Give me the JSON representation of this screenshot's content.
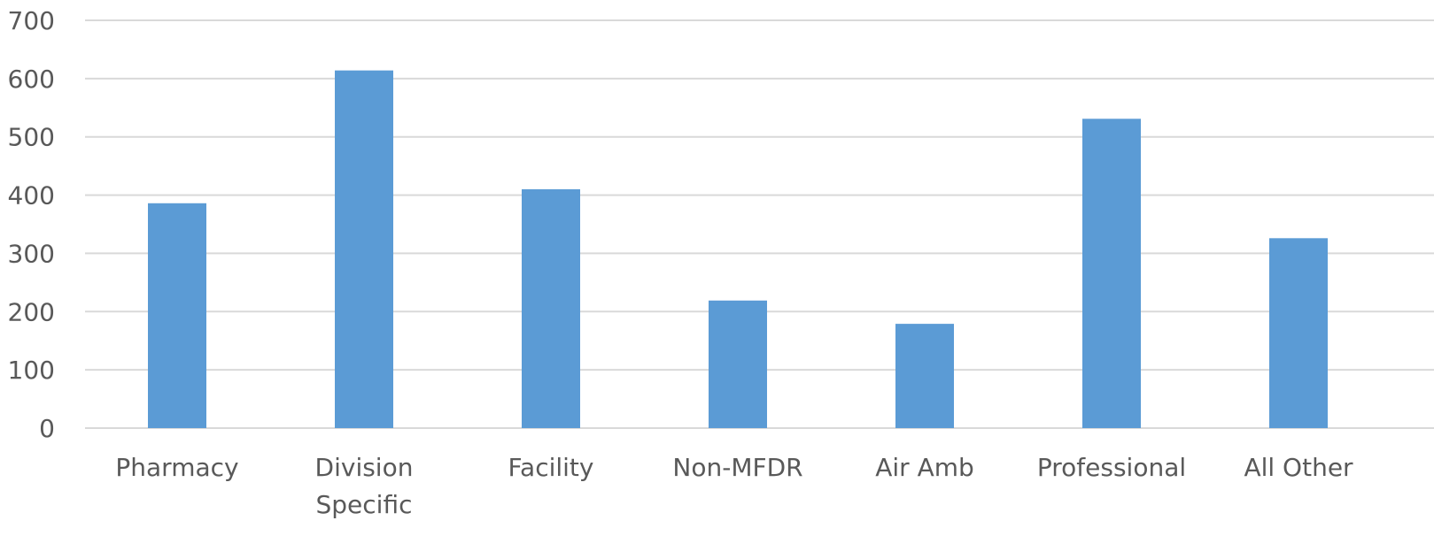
{
  "colors": {
    "bar": "#5b9bd5",
    "gridline": "#d9d9d9",
    "text": "#595959",
    "background": "#ffffff"
  },
  "chart_data": {
    "type": "bar",
    "title": "",
    "xlabel": "",
    "ylabel": "",
    "categories": [
      [
        "Pharmacy"
      ],
      [
        "Division",
        "Specific"
      ],
      [
        "Facility"
      ],
      [
        "Non-MFDR"
      ],
      [
        "Air Amb"
      ],
      [
        "Professional"
      ],
      [
        "All Other"
      ]
    ],
    "values": [
      386,
      614,
      410,
      219,
      179,
      531,
      326
    ],
    "ylim": [
      0,
      700
    ],
    "yticks": [
      0,
      100,
      200,
      300,
      400,
      500,
      600,
      700
    ],
    "grid": true,
    "legend": "none"
  }
}
